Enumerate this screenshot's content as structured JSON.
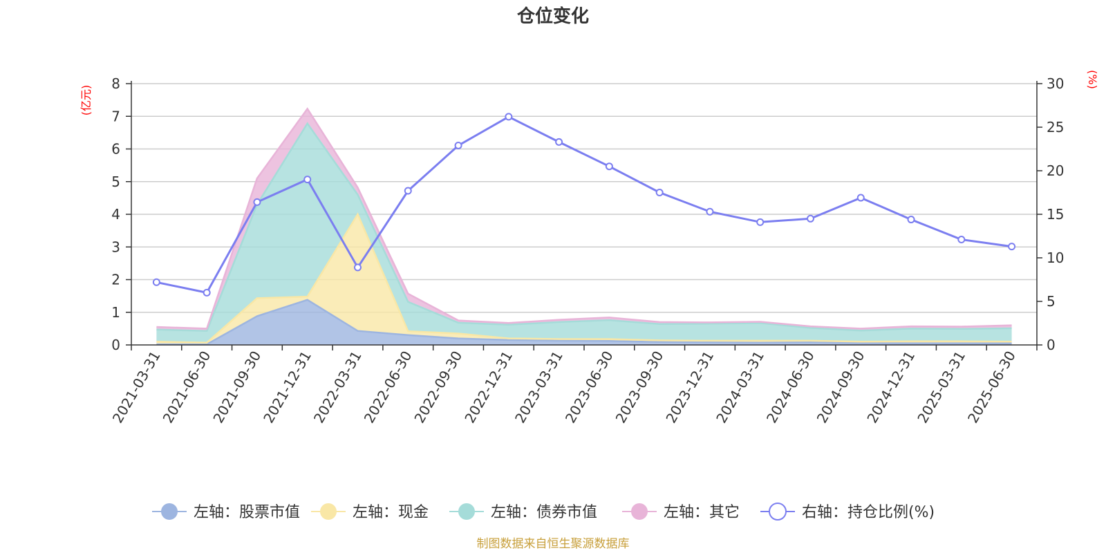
{
  "chart_data": {
    "type": "area",
    "title": "仓位变化",
    "left_axis": {
      "unit": "(亿元)",
      "range": [
        0,
        8
      ],
      "ticks": [
        "0",
        "1",
        "2",
        "3",
        "4",
        "5",
        "6",
        "7",
        "8"
      ]
    },
    "right_axis": {
      "unit": "(%)",
      "range": [
        0,
        30
      ],
      "ticks": [
        "0",
        "5",
        "10",
        "15",
        "20",
        "25",
        "30"
      ]
    },
    "categories": [
      "2021-03-31",
      "2021-06-30",
      "2021-09-30",
      "2021-12-31",
      "2022-03-31",
      "2022-06-30",
      "2022-09-30",
      "2022-12-31",
      "2023-03-31",
      "2023-06-30",
      "2023-09-30",
      "2023-12-31",
      "2024-03-31",
      "2024-06-30",
      "2024-09-30",
      "2024-12-31",
      "2025-03-31",
      "2025-06-30"
    ],
    "stacked_series": [
      {
        "name": "左轴：股票市值",
        "color": "#9db5e0",
        "values": [
          0.02,
          0.02,
          0.88,
          1.38,
          0.43,
          0.3,
          0.2,
          0.15,
          0.13,
          0.12,
          0.09,
          0.08,
          0.07,
          0.08,
          0.06,
          0.05,
          0.05,
          0.05
        ]
      },
      {
        "name": "左轴：现金",
        "color": "#f9e7a6",
        "values": [
          0.08,
          0.05,
          0.55,
          0.1,
          3.57,
          0.12,
          0.15,
          0.05,
          0.05,
          0.06,
          0.05,
          0.05,
          0.06,
          0.05,
          0.04,
          0.06,
          0.06,
          0.05
        ]
      },
      {
        "name": "左轴：债券市值",
        "color": "#a5dcd9",
        "values": [
          0.37,
          0.36,
          2.87,
          5.3,
          0.6,
          0.9,
          0.33,
          0.42,
          0.52,
          0.58,
          0.5,
          0.52,
          0.54,
          0.39,
          0.34,
          0.39,
          0.38,
          0.41
        ]
      },
      {
        "name": "左轴：其它",
        "color": "#e8b4d8",
        "values": [
          0.08,
          0.07,
          0.8,
          0.45,
          0.22,
          0.25,
          0.07,
          0.05,
          0.07,
          0.08,
          0.06,
          0.04,
          0.04,
          0.05,
          0.06,
          0.07,
          0.07,
          0.09
        ]
      }
    ],
    "line_series": {
      "name": "右轴：持仓比例(%)",
      "color": "#7b7ef0",
      "axis": "right",
      "values": [
        7.2,
        6.0,
        16.4,
        19.0,
        8.9,
        17.7,
        22.9,
        26.2,
        23.3,
        20.5,
        17.5,
        15.3,
        14.1,
        14.5,
        16.9,
        14.4,
        12.1,
        11.3
      ]
    },
    "grid": true,
    "legend_position": "bottom"
  },
  "source_note": "制图数据来自恒生聚源数据库"
}
